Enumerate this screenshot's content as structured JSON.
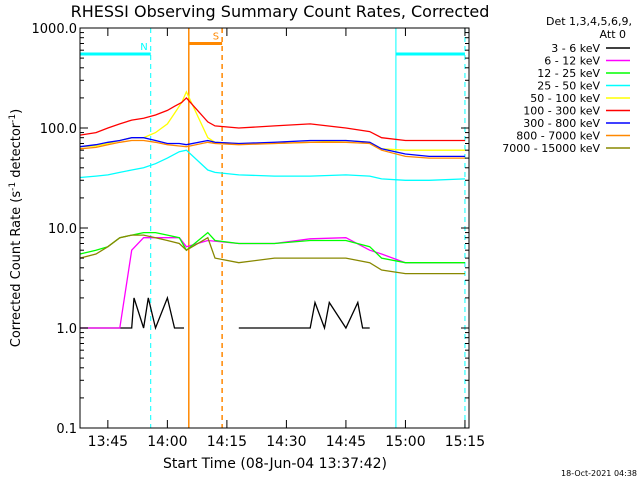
{
  "chart_data": {
    "type": "line",
    "title": "RHESSI Observing Summary Count Rates, Corrected",
    "xlabel": "Start Time (08-Jun-04 13:37:42)",
    "ylabel_main": "Corrected Count Rate (s",
    "ylabel_sup1": "-1",
    "ylabel_mid": " detector",
    "ylabel_sup2": "-1",
    "ylabel_end": ")",
    "yscale": "log",
    "ylim": [
      0.1,
      1000
    ],
    "y_ticks": [
      {
        "value": 0.1,
        "label": "0.1"
      },
      {
        "value": 1,
        "label": "1.0"
      },
      {
        "value": 10,
        "label": "10.0"
      },
      {
        "value": 100,
        "label": "100.0"
      },
      {
        "value": 1000,
        "label": "1000.0"
      }
    ],
    "xlim": [
      13.633,
      15.267
    ],
    "x_ticks": [
      {
        "value": 13.75,
        "label": "13:45"
      },
      {
        "value": 14.0,
        "label": "14:00"
      },
      {
        "value": 14.25,
        "label": "14:15"
      },
      {
        "value": 14.5,
        "label": "14:30"
      },
      {
        "value": 14.75,
        "label": "14:45"
      },
      {
        "value": 15.0,
        "label": "15:00"
      },
      {
        "value": 15.25,
        "label": "15:15"
      }
    ],
    "legend_header": [
      "Det 1,3,4,5,6,9,",
      "Att 0"
    ],
    "legend_placement": "right",
    "series": [
      {
        "name": "3 - 6 keV",
        "color": "#000000",
        "x": [
          13.633,
          13.85,
          13.86,
          13.9,
          13.92,
          13.95,
          14.0,
          14.03,
          14.07,
          14.08,
          14.3,
          14.45,
          14.5,
          14.6,
          14.62,
          14.66,
          14.68,
          14.75,
          14.8,
          14.82,
          14.85
        ],
        "y": [
          1.0,
          1.0,
          2.0,
          1.0,
          2.0,
          1.0,
          2.0,
          1.0,
          1.0,
          null,
          1.0,
          1.0,
          1.0,
          1.0,
          1.8,
          1.0,
          1.8,
          1.0,
          1.8,
          1.0,
          1.0
        ]
      },
      {
        "name": "6 - 12 keV",
        "color": "#ff00ff",
        "x": [
          13.633,
          13.8,
          13.85,
          13.9,
          13.95,
          14.0,
          14.05,
          14.08,
          14.17,
          14.3,
          14.45,
          14.6,
          14.75,
          14.85,
          14.9,
          15.0,
          15.1,
          15.25
        ],
        "y": [
          1.0,
          1.0,
          6.0,
          8.0,
          8.0,
          8.0,
          8.0,
          6.5,
          7.5,
          7.0,
          7.0,
          7.8,
          8.0,
          6.0,
          5.5,
          4.5,
          4.5,
          4.5
        ]
      },
      {
        "name": "12 - 25 keV",
        "color": "#00ff00",
        "x": [
          13.633,
          13.7,
          13.75,
          13.8,
          13.85,
          13.9,
          13.95,
          14.0,
          14.05,
          14.08,
          14.17,
          14.2,
          14.3,
          14.45,
          14.6,
          14.75,
          14.85,
          14.9,
          15.0,
          15.1,
          15.25
        ],
        "y": [
          5.5,
          6.0,
          6.5,
          8.0,
          8.5,
          9.0,
          9.0,
          8.5,
          8.0,
          6.0,
          9.0,
          7.5,
          7.0,
          7.0,
          7.5,
          7.5,
          6.5,
          5.0,
          4.5,
          4.5,
          4.5
        ]
      },
      {
        "name": "25 - 50 keV",
        "color": "#00ffff",
        "x": [
          13.633,
          13.7,
          13.75,
          13.8,
          13.85,
          13.9,
          13.95,
          14.0,
          14.05,
          14.08,
          14.17,
          14.2,
          14.3,
          14.45,
          14.6,
          14.75,
          14.85,
          14.9,
          15.0,
          15.1,
          15.25
        ],
        "y": [
          32,
          33,
          34,
          36,
          38,
          40,
          44,
          50,
          58,
          60,
          38,
          36,
          34,
          33,
          33,
          34,
          33,
          31,
          30,
          30,
          31
        ]
      },
      {
        "name": "50 - 100 keV",
        "color": "#ffff00",
        "x": [
          13.633,
          13.7,
          13.75,
          13.8,
          13.85,
          13.9,
          13.95,
          14.0,
          14.03,
          14.06,
          14.08,
          14.17,
          14.2,
          14.3,
          14.45,
          14.6,
          14.75,
          14.85,
          14.9,
          15.0,
          15.1,
          15.25
        ],
        "y": [
          65,
          66,
          70,
          75,
          80,
          80,
          90,
          110,
          140,
          180,
          230,
          80,
          72,
          70,
          70,
          72,
          75,
          72,
          62,
          60,
          60,
          60
        ]
      },
      {
        "name": "100 - 300 keV",
        "color": "#ff0000",
        "x": [
          13.633,
          13.7,
          13.75,
          13.8,
          13.85,
          13.9,
          13.95,
          14.0,
          14.03,
          14.06,
          14.08,
          14.17,
          14.2,
          14.3,
          14.45,
          14.6,
          14.75,
          14.85,
          14.9,
          15.0,
          15.1,
          15.25
        ],
        "y": [
          85,
          90,
          100,
          110,
          120,
          125,
          135,
          150,
          165,
          180,
          200,
          115,
          105,
          100,
          105,
          110,
          100,
          92,
          80,
          75,
          75,
          75
        ]
      },
      {
        "name": "300 - 800 keV",
        "color": "#0000ff",
        "x": [
          13.633,
          13.7,
          13.75,
          13.8,
          13.85,
          13.9,
          13.95,
          14.0,
          14.05,
          14.08,
          14.17,
          14.2,
          14.3,
          14.45,
          14.6,
          14.75,
          14.85,
          14.9,
          15.0,
          15.1,
          15.25
        ],
        "y": [
          65,
          68,
          72,
          75,
          80,
          80,
          75,
          70,
          70,
          68,
          75,
          72,
          70,
          72,
          75,
          75,
          72,
          62,
          55,
          52,
          52
        ]
      },
      {
        "name": "800 - 7000 keV",
        "color": "#ff8800",
        "x": [
          13.633,
          13.7,
          13.75,
          13.8,
          13.85,
          13.9,
          13.95,
          14.0,
          14.05,
          14.08,
          14.17,
          14.2,
          14.3,
          14.45,
          14.6,
          14.75,
          14.85,
          14.9,
          15.0,
          15.1,
          15.25
        ],
        "y": [
          62,
          64,
          68,
          72,
          75,
          75,
          72,
          68,
          66,
          65,
          72,
          70,
          68,
          70,
          72,
          72,
          70,
          60,
          52,
          50,
          50
        ]
      },
      {
        "name": "7000 - 15000 keV",
        "color": "#888800",
        "x": [
          13.633,
          13.7,
          13.75,
          13.8,
          13.85,
          13.9,
          13.95,
          14.0,
          14.05,
          14.08,
          14.17,
          14.2,
          14.3,
          14.45,
          14.6,
          14.75,
          14.85,
          14.9,
          15.0,
          15.1,
          15.25
        ],
        "y": [
          5.0,
          5.5,
          6.5,
          8.0,
          8.5,
          8.5,
          8.0,
          7.5,
          7.0,
          6.0,
          8.0,
          5.0,
          4.5,
          5.0,
          5.0,
          5.0,
          4.5,
          3.8,
          3.5,
          3.5,
          3.5
        ]
      }
    ],
    "annotations": [
      {
        "label": "N",
        "color": "#00ffff",
        "x_start": 13.633,
        "x_end": 13.93,
        "level": 550
      },
      {
        "label": "",
        "color": "#00ffff",
        "x_start": 14.96,
        "x_end": 15.25,
        "level": 550
      },
      {
        "label": "S",
        "color": "#ff8800",
        "x_start": 14.09,
        "x_end": 14.23,
        "level": 700
      }
    ],
    "vertical_lines": [
      {
        "x": 13.633,
        "color": "#00ffff",
        "style": "solid"
      },
      {
        "x": 13.93,
        "color": "#00ffff",
        "style": "dashed"
      },
      {
        "x": 14.96,
        "color": "#00ffff",
        "style": "solid"
      },
      {
        "x": 15.25,
        "color": "#00ffff",
        "style": "dashed"
      },
      {
        "x": 14.09,
        "color": "#ff8800",
        "style": "solid"
      },
      {
        "x": 14.23,
        "color": "#ff8800",
        "style": "dashed"
      }
    ],
    "grid": false
  },
  "footer": {
    "timestamp": "18-Oct-2021 04:38"
  }
}
